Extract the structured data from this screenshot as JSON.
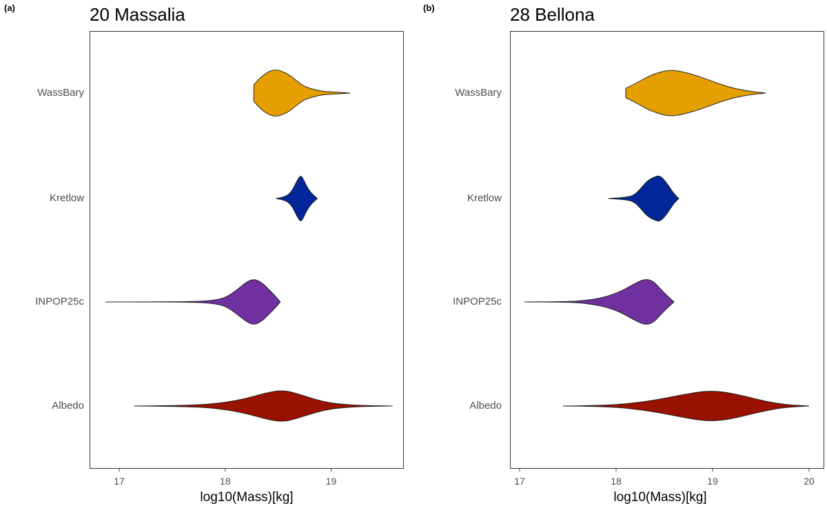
{
  "chart_data": [
    {
      "type": "violin",
      "panel_tag": "(a)",
      "title": "20 Massalia",
      "xlabel": "log10(Mass)[kg]",
      "xlim": [
        16.72,
        19.68
      ],
      "xticks": [
        17,
        18,
        19
      ],
      "tick_labels": [
        "17",
        "18",
        "19"
      ],
      "categories": [
        "WassBary",
        "Kretlow",
        "INPOP25c",
        "Albedo"
      ],
      "series": [
        {
          "name": "WassBary",
          "color": "#E69F00",
          "min": 18.27,
          "max": 19.18,
          "profile": [
            [
              18.27,
              0.35
            ],
            [
              18.34,
              0.7
            ],
            [
              18.42,
              0.95
            ],
            [
              18.5,
              1.0
            ],
            [
              18.6,
              0.8
            ],
            [
              18.68,
              0.5
            ],
            [
              18.74,
              0.3
            ],
            [
              18.8,
              0.2
            ],
            [
              18.86,
              0.13
            ],
            [
              18.93,
              0.07
            ],
            [
              19.0,
              0.05
            ],
            [
              19.08,
              0.03
            ],
            [
              19.18,
              0.0
            ]
          ]
        },
        {
          "name": "Kretlow",
          "color": "#002699",
          "min": 18.48,
          "max": 18.87,
          "profile": [
            [
              18.48,
              0.0
            ],
            [
              18.55,
              0.06
            ],
            [
              18.6,
              0.17
            ],
            [
              18.64,
              0.4
            ],
            [
              18.68,
              0.78
            ],
            [
              18.71,
              0.98
            ],
            [
              18.73,
              0.9
            ],
            [
              18.76,
              0.6
            ],
            [
              18.8,
              0.3
            ],
            [
              18.84,
              0.12
            ],
            [
              18.87,
              0.0
            ]
          ]
        },
        {
          "name": "INPOP25c",
          "color": "#7030A0",
          "min": 16.87,
          "max": 18.52,
          "profile": [
            [
              16.87,
              0.0
            ],
            [
              17.2,
              0.002
            ],
            [
              17.5,
              0.006
            ],
            [
              17.75,
              0.02
            ],
            [
              17.92,
              0.08
            ],
            [
              18.02,
              0.22
            ],
            [
              18.12,
              0.55
            ],
            [
              18.2,
              0.85
            ],
            [
              18.27,
              0.98
            ],
            [
              18.34,
              0.85
            ],
            [
              18.42,
              0.5
            ],
            [
              18.48,
              0.22
            ],
            [
              18.52,
              0.0
            ]
          ]
        },
        {
          "name": "Albedo",
          "color": "#991100",
          "min": 17.14,
          "max": 19.58,
          "profile": [
            [
              17.14,
              0.0
            ],
            [
              17.5,
              0.015
            ],
            [
              17.8,
              0.06
            ],
            [
              18.0,
              0.15
            ],
            [
              18.2,
              0.32
            ],
            [
              18.4,
              0.58
            ],
            [
              18.55,
              0.68
            ],
            [
              18.7,
              0.5
            ],
            [
              18.85,
              0.28
            ],
            [
              19.0,
              0.12
            ],
            [
              19.2,
              0.04
            ],
            [
              19.4,
              0.01
            ],
            [
              19.58,
              0.0
            ]
          ]
        }
      ]
    },
    {
      "type": "violin",
      "panel_tag": "(b)",
      "title": "28 Bellona",
      "xlabel": "log10(Mass)[kg]",
      "xlim": [
        16.9,
        20.15
      ],
      "xticks": [
        17,
        18,
        19,
        20
      ],
      "tick_labels": [
        "17",
        "18",
        "19",
        "20"
      ],
      "categories": [
        "WassBary",
        "Kretlow",
        "INPOP25c",
        "Albedo"
      ],
      "series": [
        {
          "name": "WassBary",
          "color": "#E69F00",
          "min": 18.1,
          "max": 19.55,
          "profile": [
            [
              18.1,
              0.2
            ],
            [
              18.2,
              0.4
            ],
            [
              18.35,
              0.75
            ],
            [
              18.5,
              0.95
            ],
            [
              18.6,
              0.98
            ],
            [
              18.75,
              0.85
            ],
            [
              18.9,
              0.65
            ],
            [
              19.05,
              0.42
            ],
            [
              19.2,
              0.22
            ],
            [
              19.35,
              0.1
            ],
            [
              19.45,
              0.04
            ],
            [
              19.55,
              0.0
            ]
          ]
        },
        {
          "name": "Kretlow",
          "color": "#002699",
          "min": 17.92,
          "max": 18.65,
          "profile": [
            [
              17.92,
              0.0
            ],
            [
              18.08,
              0.04
            ],
            [
              18.18,
              0.12
            ],
            [
              18.25,
              0.4
            ],
            [
              18.32,
              0.75
            ],
            [
              18.4,
              0.93
            ],
            [
              18.45,
              0.98
            ],
            [
              18.5,
              0.8
            ],
            [
              18.56,
              0.45
            ],
            [
              18.6,
              0.2
            ],
            [
              18.65,
              0.0
            ]
          ]
        },
        {
          "name": "INPOP25c",
          "color": "#7030A0",
          "min": 17.05,
          "max": 18.6,
          "profile": [
            [
              17.05,
              0.0
            ],
            [
              17.4,
              0.006
            ],
            [
              17.6,
              0.03
            ],
            [
              17.75,
              0.1
            ],
            [
              17.9,
              0.22
            ],
            [
              18.05,
              0.45
            ],
            [
              18.2,
              0.8
            ],
            [
              18.3,
              0.98
            ],
            [
              18.38,
              0.9
            ],
            [
              18.45,
              0.6
            ],
            [
              18.52,
              0.3
            ],
            [
              18.6,
              0.0
            ]
          ]
        },
        {
          "name": "Albedo",
          "color": "#991100",
          "min": 17.45,
          "max": 20.0,
          "profile": [
            [
              17.45,
              0.0
            ],
            [
              17.8,
              0.02
            ],
            [
              18.1,
              0.08
            ],
            [
              18.4,
              0.25
            ],
            [
              18.65,
              0.45
            ],
            [
              18.85,
              0.6
            ],
            [
              19.0,
              0.64
            ],
            [
              19.15,
              0.58
            ],
            [
              19.35,
              0.4
            ],
            [
              19.55,
              0.2
            ],
            [
              19.75,
              0.06
            ],
            [
              20.0,
              0.0
            ]
          ]
        }
      ]
    }
  ]
}
